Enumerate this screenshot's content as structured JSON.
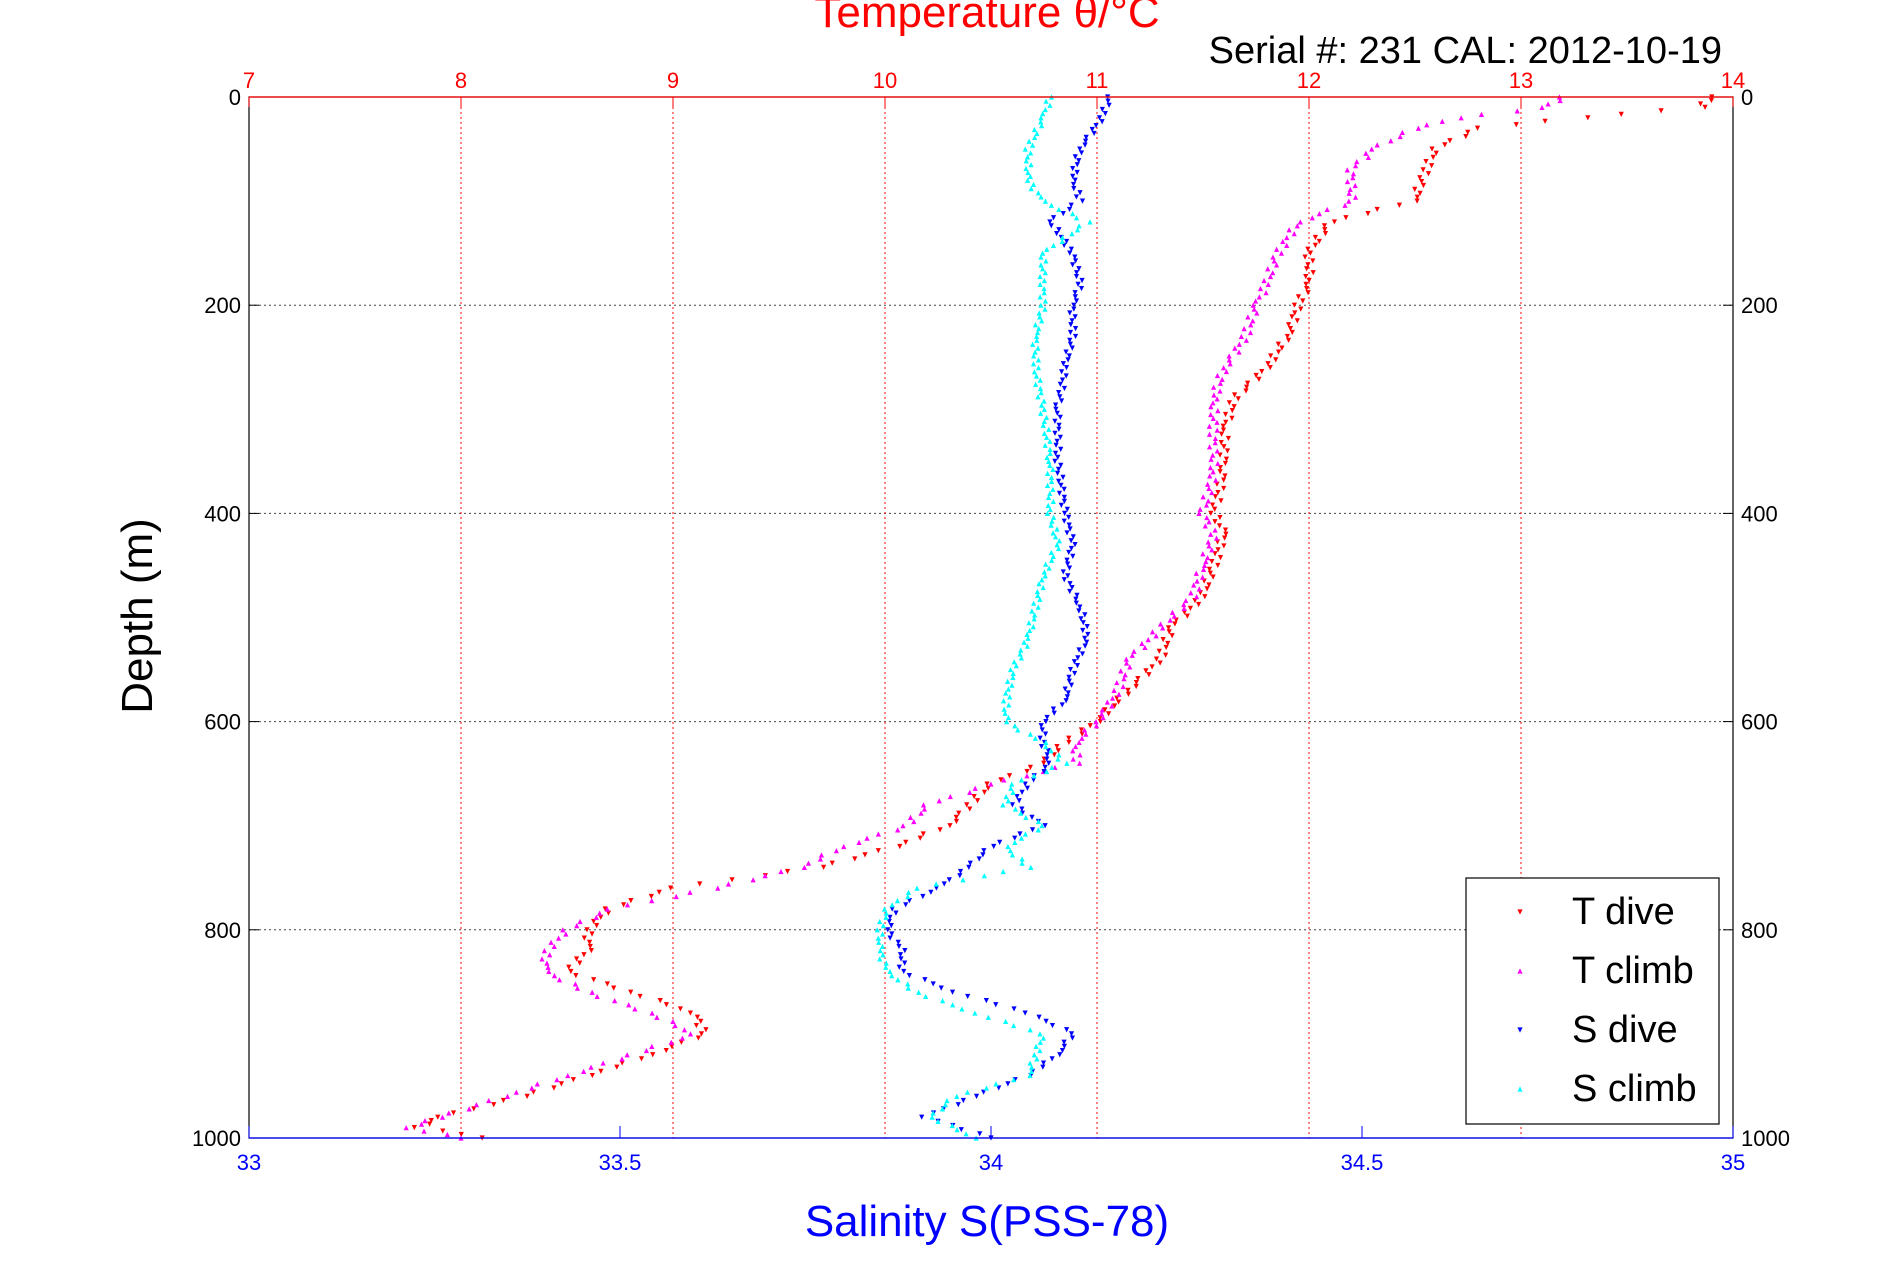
{
  "chart_data": {
    "type": "scatter",
    "title": "Temperature θ/°C",
    "subtitle": "Serial #: 231   CAL: 2012-10-19",
    "ylabel": "Depth (m)",
    "xlabel_bottom": "Salinity S(PSS-78)",
    "xlabel_top": "Temperature θ/°C",
    "ylim": [
      0,
      1000
    ],
    "y_reversed": true,
    "xlim_top": [
      7,
      14
    ],
    "xlim_bottom": [
      33,
      35
    ],
    "yticks": [
      0,
      200,
      400,
      600,
      800,
      1000
    ],
    "xticks_top": [
      7,
      8,
      9,
      10,
      11,
      12,
      13,
      14
    ],
    "xticks_bottom": [
      33,
      33.5,
      34,
      34.5,
      35
    ],
    "grid": true,
    "legend_position": "bottom-right",
    "colors": {
      "top_axis": "#ff0000",
      "bottom_axis": "#0000ff",
      "grid": "#444444"
    },
    "series": [
      {
        "name": "T dive",
        "axis": "top",
        "color": "#ff0000",
        "marker": "triangle-down",
        "depth": [
          0,
          10,
          20,
          30,
          50,
          70,
          100,
          120,
          150,
          180,
          200,
          230,
          260,
          290,
          320,
          360,
          400,
          420,
          450,
          480,
          510,
          540,
          570,
          600,
          620,
          640,
          660,
          680,
          700,
          720,
          740,
          760,
          780,
          800,
          820,
          840,
          860,
          880,
          900,
          920,
          940,
          960,
          980,
          990,
          1000
        ],
        "values": [
          13.9,
          13.85,
          13.3,
          12.8,
          12.6,
          12.55,
          12.5,
          12.1,
          12.0,
          12.0,
          11.95,
          11.9,
          11.8,
          11.65,
          11.6,
          11.6,
          11.55,
          11.6,
          11.55,
          11.5,
          11.35,
          11.3,
          11.15,
          11.0,
          10.85,
          10.75,
          10.5,
          10.4,
          10.3,
          10.05,
          9.7,
          9.0,
          8.7,
          8.6,
          8.6,
          8.5,
          8.8,
          9.1,
          9.15,
          8.9,
          8.6,
          8.3,
          7.9,
          7.8,
          8.1
        ]
      },
      {
        "name": "T climb",
        "axis": "top",
        "color": "#ff00ff",
        "marker": "triangle-up",
        "depth": [
          0,
          10,
          20,
          30,
          50,
          70,
          100,
          120,
          150,
          180,
          200,
          230,
          260,
          290,
          320,
          360,
          400,
          420,
          450,
          480,
          510,
          540,
          570,
          600,
          620,
          640,
          660,
          680,
          700,
          720,
          740,
          760,
          780,
          800,
          820,
          840,
          860,
          880,
          900,
          920,
          940,
          960,
          980,
          990,
          1000
        ],
        "values": [
          13.2,
          13.1,
          12.7,
          12.5,
          12.3,
          12.2,
          12.2,
          11.95,
          11.85,
          11.8,
          11.75,
          11.7,
          11.6,
          11.55,
          11.55,
          11.55,
          11.5,
          11.55,
          11.5,
          11.45,
          11.3,
          11.15,
          11.1,
          11.0,
          10.9,
          10.9,
          10.5,
          10.2,
          10.1,
          9.8,
          9.6,
          9.2,
          8.7,
          8.5,
          8.4,
          8.4,
          8.6,
          8.9,
          9.1,
          8.8,
          8.5,
          8.2,
          7.9,
          7.75,
          8.0
        ]
      },
      {
        "name": "S dive",
        "axis": "bottom",
        "color": "#0000ff",
        "marker": "triangle-down",
        "depth": [
          0,
          20,
          50,
          80,
          100,
          120,
          150,
          180,
          200,
          230,
          260,
          300,
          350,
          400,
          430,
          460,
          490,
          520,
          550,
          580,
          600,
          620,
          640,
          660,
          680,
          700,
          720,
          740,
          760,
          780,
          800,
          820,
          840,
          860,
          880,
          900,
          920,
          940,
          960,
          980,
          1000
        ],
        "values": [
          34.16,
          34.15,
          34.12,
          34.11,
          34.12,
          34.08,
          34.11,
          34.12,
          34.11,
          34.11,
          34.1,
          34.09,
          34.09,
          34.1,
          34.11,
          34.1,
          34.12,
          34.13,
          34.11,
          34.1,
          34.07,
          34.07,
          34.08,
          34.05,
          34.03,
          34.07,
          34.0,
          33.97,
          33.93,
          33.87,
          33.86,
          33.88,
          33.88,
          33.95,
          34.05,
          34.11,
          34.09,
          34.05,
          33.98,
          33.91,
          34.0
        ]
      },
      {
        "name": "S climb",
        "axis": "bottom",
        "color": "#00ffff",
        "marker": "triangle-up",
        "depth": [
          0,
          20,
          50,
          80,
          100,
          120,
          150,
          180,
          200,
          230,
          260,
          300,
          350,
          400,
          430,
          460,
          490,
          520,
          550,
          580,
          600,
          620,
          640,
          660,
          680,
          700,
          720,
          740,
          760,
          780,
          800,
          820,
          840,
          860,
          880,
          900,
          920,
          940,
          960,
          980,
          1000
        ],
        "values": [
          34.08,
          34.07,
          34.05,
          34.05,
          34.07,
          34.13,
          34.07,
          34.07,
          34.07,
          34.06,
          34.06,
          34.07,
          34.08,
          34.08,
          34.09,
          34.07,
          34.06,
          34.05,
          34.03,
          34.02,
          34.02,
          34.07,
          34.1,
          34.03,
          34.02,
          34.07,
          34.02,
          34.05,
          33.9,
          33.86,
          33.85,
          33.85,
          33.86,
          33.9,
          33.98,
          34.07,
          34.06,
          34.05,
          33.95,
          33.92,
          33.98
        ]
      }
    ]
  }
}
